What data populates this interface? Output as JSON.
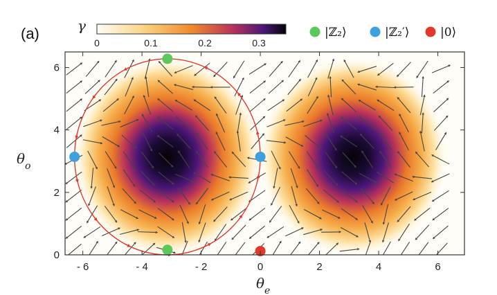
{
  "chart_data": {
    "type": "heatmap",
    "panel_label": "(a)",
    "xlabel": "θ",
    "xlabel_sub": "e",
    "ylabel": "θ",
    "ylabel_sub": "o",
    "xlim": [
      -6.6,
      6.9
    ],
    "ylim": [
      0,
      6.5
    ],
    "xticks": [
      "- 6",
      "- 4",
      "- 2",
      "0",
      "2",
      "4",
      "6"
    ],
    "xtick_values": [
      -6,
      -4,
      -2,
      0,
      2,
      4,
      6
    ],
    "yticks": [
      "0",
      "2",
      "4",
      "6"
    ],
    "ytick_values": [
      0,
      2,
      4,
      6
    ],
    "colorbar": {
      "label": "γ",
      "range": [
        0,
        0.35
      ],
      "ticks": [
        "0",
        "0.1",
        "0.2",
        "0.3"
      ],
      "tick_values": [
        0,
        0.1,
        0.2,
        0.3
      ],
      "colormap": "inferno-reversed (white → orange → purple → black)"
    },
    "field": "stream plot (flow arrows) over density γ(θe, θo)",
    "maxima": [
      {
        "x": -3.14,
        "y": 3.14,
        "gamma": 0.35
      },
      {
        "x": 3.14,
        "y": 3.14,
        "gamma": 0.35
      }
    ],
    "legend": [
      {
        "label": "|ℤ₂⟩",
        "color": "#5cc85c"
      },
      {
        "label": "|ℤ₂′⟩",
        "color": "#3ea0dc"
      },
      {
        "label": "|0⟩",
        "color": "#e03a2a"
      }
    ],
    "points": {
      "Z2": [
        {
          "x": -3.14,
          "y": 6.28
        },
        {
          "x": -3.14,
          "y": 0.16
        }
      ],
      "Z2prime": [
        {
          "x": -6.28,
          "y": 3.14
        },
        {
          "x": 0,
          "y": 3.14
        }
      ],
      "zero": [
        {
          "x": 0,
          "y": 0.12
        }
      ]
    },
    "orbit": {
      "center": [
        -3.14,
        3.14
      ],
      "rx": 3.14,
      "ry": 3.14,
      "color": "#e03a2a",
      "direction": "counter-clockwise"
    }
  }
}
